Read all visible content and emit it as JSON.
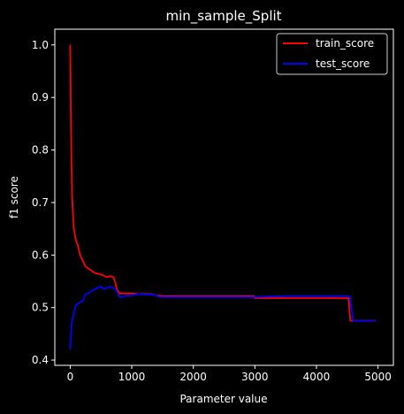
{
  "chart_data": {
    "type": "line",
    "title": "min_sample_Split",
    "xlabel": "Parameter value",
    "ylabel": "f1 score",
    "xlim": [
      -250,
      5250
    ],
    "ylim": [
      0.39,
      1.03
    ],
    "xticks": [
      0,
      1000,
      2000,
      3000,
      4000,
      5000
    ],
    "yticks": [
      0.4,
      0.5,
      0.6,
      0.7,
      0.8,
      0.9,
      1.0
    ],
    "xtick_labels": [
      "0",
      "1000",
      "2000",
      "3000",
      "4000",
      "5000"
    ],
    "ytick_labels": [
      "0.4",
      "0.5",
      "0.6",
      "0.7",
      "0.8",
      "0.9",
      "1.0"
    ],
    "grid": false,
    "legend": "top-right",
    "series": [
      {
        "name": "train_score",
        "color": "#ff0000",
        "x": [
          2,
          10,
          20,
          30,
          40,
          50,
          60,
          80,
          100,
          120,
          140,
          160,
          200,
          250,
          300,
          350,
          400,
          500,
          600,
          650,
          700,
          720,
          760,
          800,
          850,
          900,
          1000,
          1100,
          1200,
          1300,
          1400,
          1500,
          2000,
          2500,
          2990,
          3000,
          3500,
          4000,
          4520,
          4550,
          4600,
          4800,
          4960
        ],
        "y": [
          1.0,
          0.88,
          0.78,
          0.72,
          0.69,
          0.665,
          0.65,
          0.635,
          0.625,
          0.62,
          0.61,
          0.6,
          0.59,
          0.578,
          0.574,
          0.57,
          0.566,
          0.563,
          0.558,
          0.56,
          0.558,
          0.553,
          0.535,
          0.527,
          0.527,
          0.527,
          0.527,
          0.526,
          0.526,
          0.526,
          0.523,
          0.522,
          0.522,
          0.522,
          0.522,
          0.518,
          0.518,
          0.518,
          0.518,
          0.475,
          0.475,
          0.475,
          0.475
        ]
      },
      {
        "name": "test_score",
        "color": "#0000ff",
        "x": [
          2,
          10,
          20,
          40,
          60,
          80,
          100,
          150,
          200,
          250,
          300,
          350,
          400,
          450,
          500,
          550,
          600,
          650,
          700,
          750,
          800,
          850,
          900,
          1000,
          1100,
          1200,
          1300,
          1400,
          1450,
          1500,
          2000,
          2500,
          3000,
          3500,
          4000,
          4500,
          4540,
          4600,
          4800,
          4960
        ],
        "y": [
          0.42,
          0.44,
          0.465,
          0.48,
          0.49,
          0.5,
          0.505,
          0.51,
          0.512,
          0.525,
          0.528,
          0.532,
          0.535,
          0.538,
          0.54,
          0.535,
          0.538,
          0.54,
          0.537,
          0.533,
          0.52,
          0.52,
          0.523,
          0.523,
          0.526,
          0.525,
          0.525,
          0.523,
          0.52,
          0.52,
          0.52,
          0.52,
          0.52,
          0.522,
          0.522,
          0.522,
          0.522,
          0.475,
          0.475,
          0.475
        ]
      }
    ]
  }
}
